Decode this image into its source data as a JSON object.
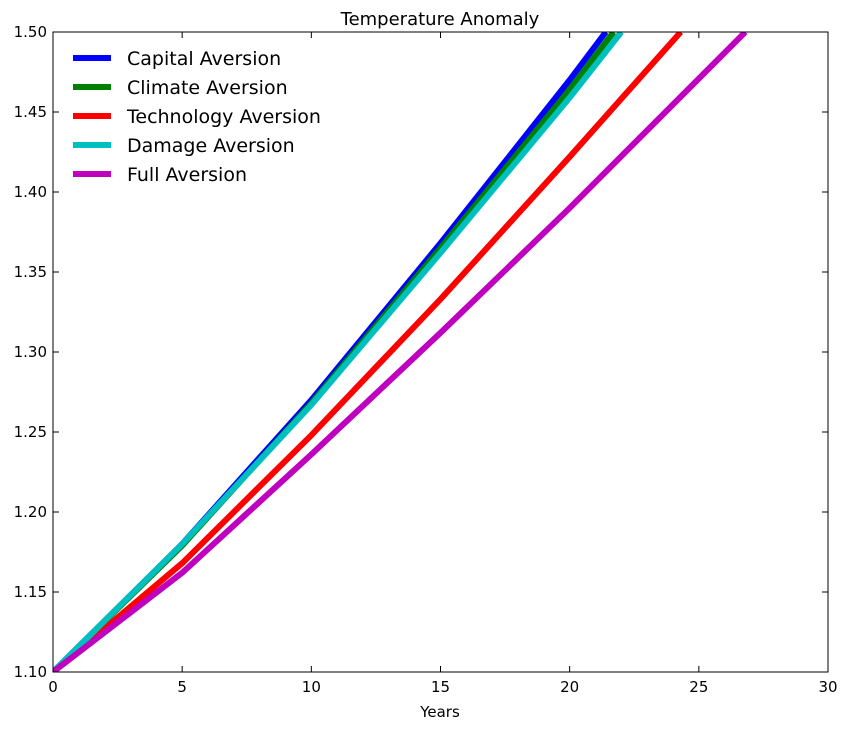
{
  "chart_data": {
    "type": "line",
    "title": "Temperature Anomaly",
    "xlabel": "Years",
    "ylabel": "",
    "xlim": [
      0,
      30
    ],
    "ylim": [
      1.1,
      1.5
    ],
    "xticks": [
      "0",
      "5",
      "10",
      "15",
      "20",
      "25",
      "30"
    ],
    "yticks": [
      "1.10",
      "1.15",
      "1.20",
      "1.25",
      "1.30",
      "1.35",
      "1.40",
      "1.45",
      "1.50"
    ],
    "grid": false,
    "legend_position": "top-left",
    "series": [
      {
        "name": "Capital Aversion",
        "color": "#0000ff",
        "x": [
          0,
          5,
          10,
          15,
          20,
          21.4
        ],
        "y": [
          1.1,
          1.18,
          1.27,
          1.368,
          1.47,
          1.5
        ]
      },
      {
        "name": "Climate Aversion",
        "color": "#008000",
        "x": [
          0,
          5,
          10,
          15,
          20,
          21.7
        ],
        "y": [
          1.1,
          1.179,
          1.268,
          1.365,
          1.464,
          1.5
        ]
      },
      {
        "name": "Technology Aversion",
        "color": "#ff0000",
        "x": [
          0,
          5,
          10,
          15,
          20,
          24.3
        ],
        "y": [
          1.1,
          1.168,
          1.248,
          1.333,
          1.422,
          1.5
        ]
      },
      {
        "name": "Damage Aversion",
        "color": "#00bfbf",
        "x": [
          0,
          5,
          10,
          15,
          20,
          22.0
        ],
        "y": [
          1.1,
          1.18,
          1.267,
          1.362,
          1.459,
          1.5
        ]
      },
      {
        "name": "Full Aversion",
        "color": "#bf00bf",
        "x": [
          0,
          5,
          10,
          15,
          20,
          26.8
        ],
        "y": [
          1.1,
          1.162,
          1.236,
          1.312,
          1.39,
          1.5
        ]
      }
    ]
  }
}
